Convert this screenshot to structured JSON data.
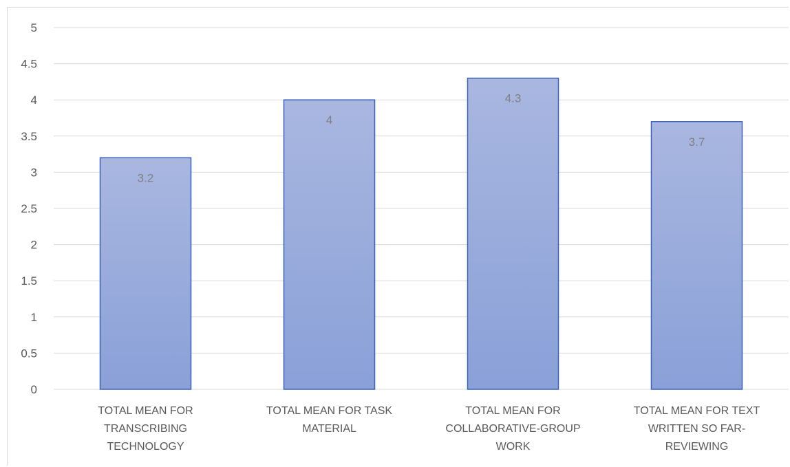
{
  "chart_data": {
    "type": "bar",
    "categories": [
      [
        "TOTAL MEAN FOR",
        "TRANSCRIBING",
        "TECHNOLOGY"
      ],
      [
        "TOTAL MEAN FOR TASK",
        "MATERIAL"
      ],
      [
        "TOTAL MEAN FOR",
        "COLLABORATIVE-GROUP",
        "WORK"
      ],
      [
        "TOTAL MEAN FOR TEXT",
        "WRITTEN SO FAR-",
        "REVIEWING"
      ]
    ],
    "values": [
      3.2,
      4,
      4.3,
      3.7
    ],
    "data_labels": [
      "3.2",
      "4",
      "4.3",
      "3.7"
    ],
    "ylim": [
      0,
      5
    ],
    "yticks": [
      "0",
      "0.5",
      "1",
      "1.5",
      "2",
      "2.5",
      "3",
      "3.5",
      "4",
      "4.5",
      "5"
    ],
    "grid": true,
    "colors": {
      "bar_top": "#a9b7e0",
      "bar_bottom": "#8aa0d8",
      "bar_border": "#3b62b4",
      "grid": "#d9d9d9",
      "text": "#595959",
      "data_label": "#7f7f7f"
    }
  }
}
